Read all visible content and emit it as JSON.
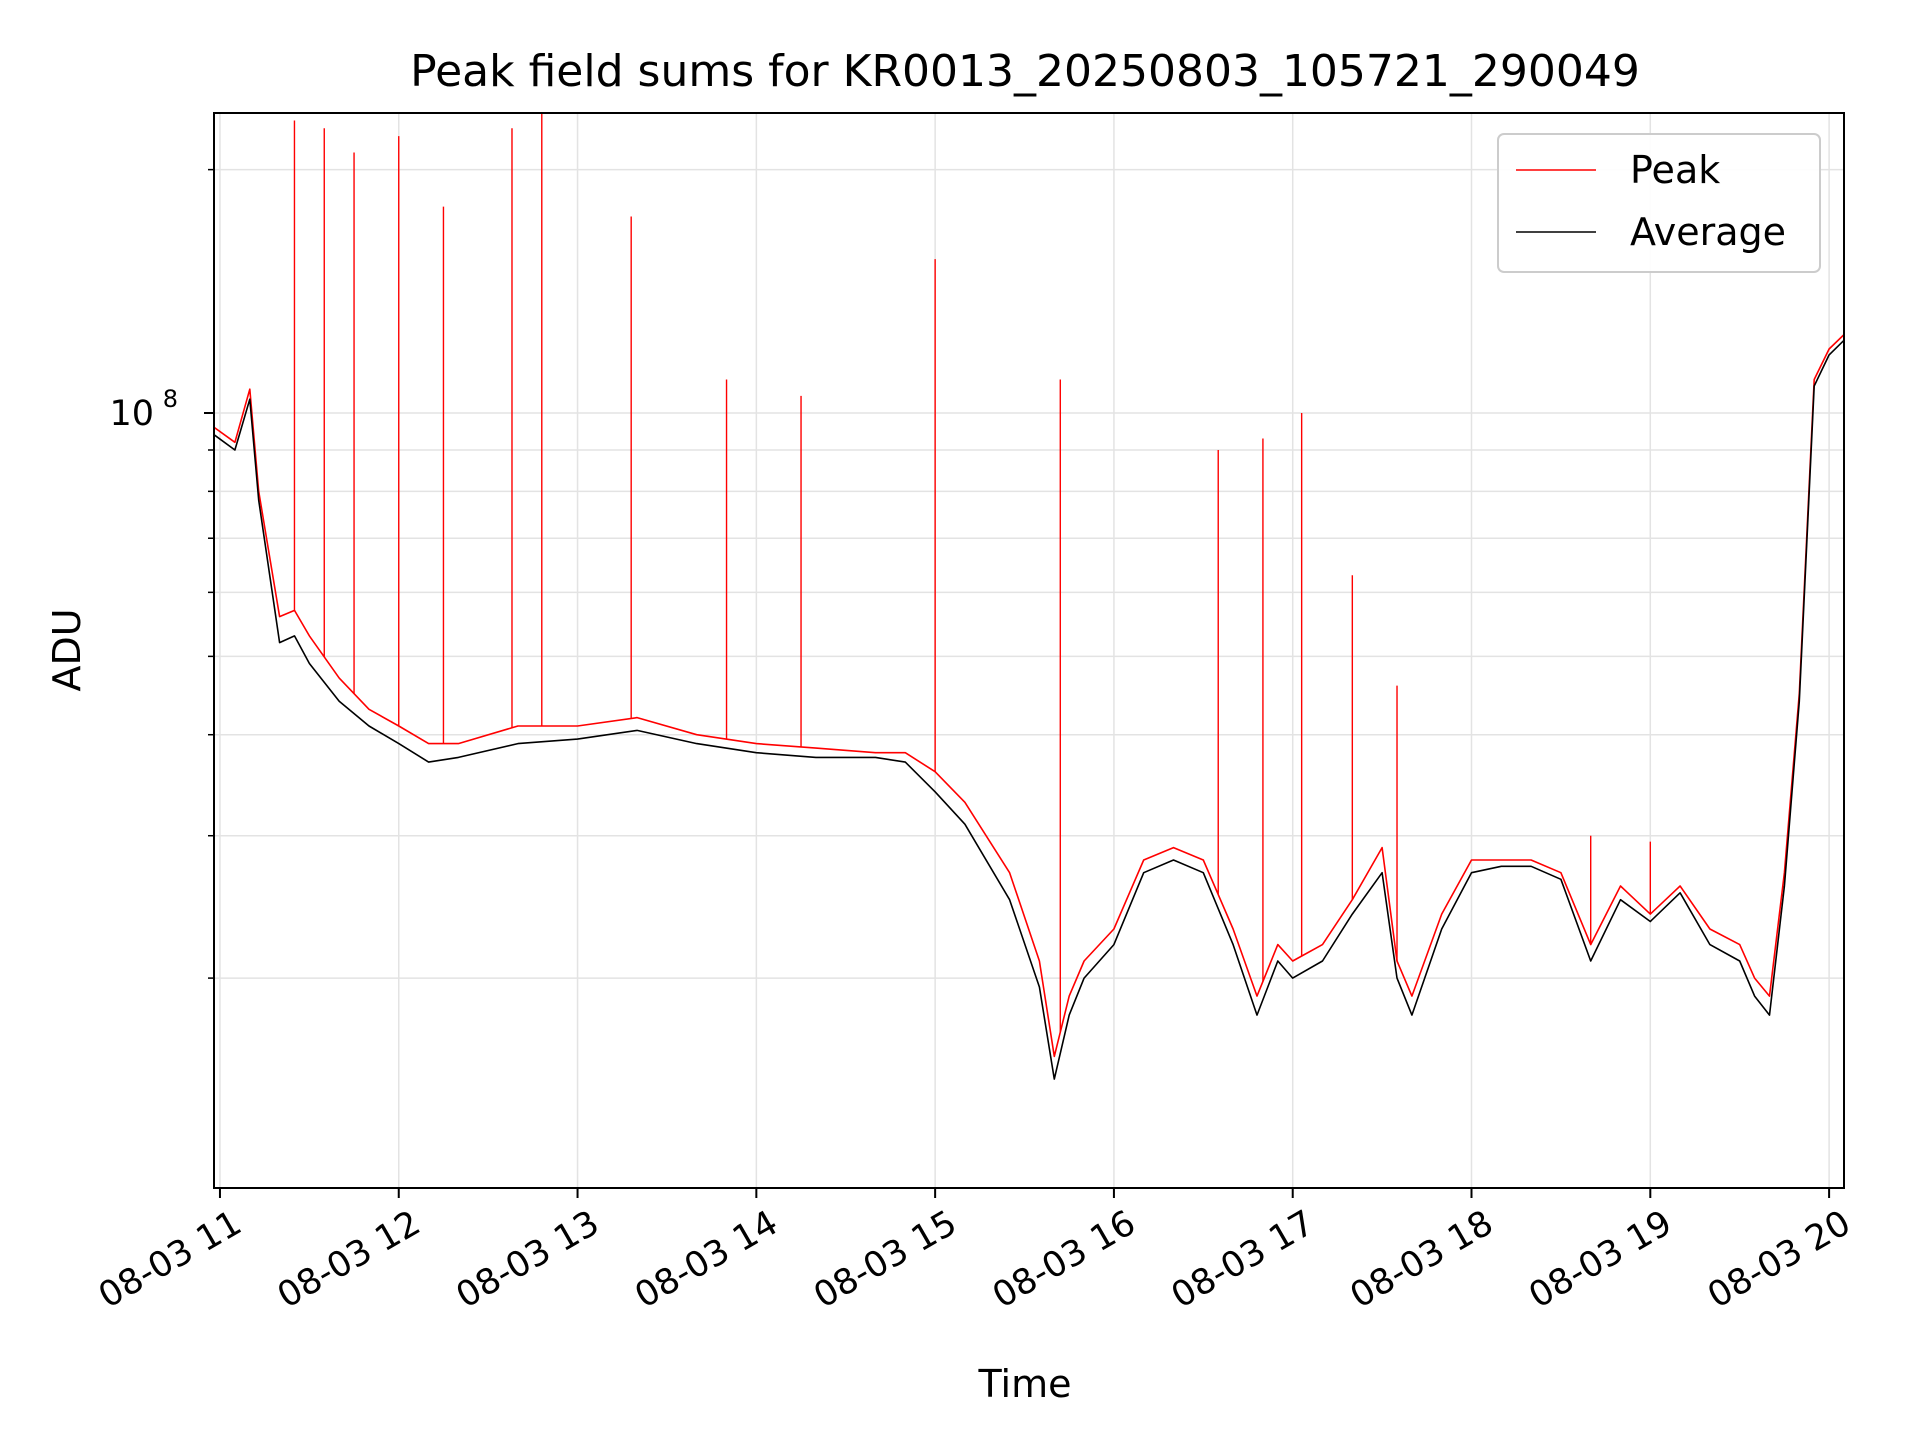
{
  "chart_data": {
    "type": "line",
    "title": "Peak field sums for KR0013_20250803_105721_290049",
    "xlabel": "Time",
    "ylabel": "ADU",
    "yscale": "log",
    "xlim": [
      "2025-08-03T10:58:00",
      "2025-08-03T20:05:00"
    ],
    "ylim": [
      11000000,
      235000000
    ],
    "grid": true,
    "legend_position": "top-right",
    "x_tick_labels": [
      "08-03 11",
      "08-03 12",
      "08-03 13",
      "08-03 14",
      "08-03 15",
      "08-03 16",
      "08-03 17",
      "08-03 18",
      "08-03 19",
      "08-03 20"
    ],
    "x_tick_values": [
      "2025-08-03T11:00:00",
      "2025-08-03T12:00:00",
      "2025-08-03T13:00:00",
      "2025-08-03T14:00:00",
      "2025-08-03T15:00:00",
      "2025-08-03T16:00:00",
      "2025-08-03T17:00:00",
      "2025-08-03T18:00:00",
      "2025-08-03T19:00:00",
      "2025-08-03T20:00:00"
    ],
    "y_major_tick_label": "10",
    "y_major_tick_exponent": "8",
    "y_major_tick_value": 100000000,
    "y_minor_tick_values": [
      20000000,
      30000000,
      40000000,
      50000000,
      60000000,
      70000000,
      80000000,
      90000000,
      200000000
    ],
    "series": [
      {
        "name": "Peak",
        "color": "#ff0000",
        "x": [
          "2025-08-03T10:58:00",
          "2025-08-03T11:05:00",
          "2025-08-03T11:10:00",
          "2025-08-03T11:13:00",
          "2025-08-03T11:20:00",
          "2025-08-03T11:25:00",
          "2025-08-03T11:30:00",
          "2025-08-03T11:40:00",
          "2025-08-03T11:50:00",
          "2025-08-03T12:00:00",
          "2025-08-03T12:10:00",
          "2025-08-03T12:20:00",
          "2025-08-03T12:40:00",
          "2025-08-03T13:00:00",
          "2025-08-03T13:20:00",
          "2025-08-03T13:40:00",
          "2025-08-03T14:00:00",
          "2025-08-03T14:20:00",
          "2025-08-03T14:40:00",
          "2025-08-03T14:50:00",
          "2025-08-03T15:00:00",
          "2025-08-03T15:10:00",
          "2025-08-03T15:25:00",
          "2025-08-03T15:35:00",
          "2025-08-03T15:40:00",
          "2025-08-03T15:45:00",
          "2025-08-03T15:50:00",
          "2025-08-03T16:00:00",
          "2025-08-03T16:10:00",
          "2025-08-03T16:20:00",
          "2025-08-03T16:30:00",
          "2025-08-03T16:40:00",
          "2025-08-03T16:48:00",
          "2025-08-03T16:55:00",
          "2025-08-03T17:00:00",
          "2025-08-03T17:10:00",
          "2025-08-03T17:20:00",
          "2025-08-03T17:30:00",
          "2025-08-03T17:35:00",
          "2025-08-03T17:40:00",
          "2025-08-03T17:50:00",
          "2025-08-03T18:00:00",
          "2025-08-03T18:10:00",
          "2025-08-03T18:20:00",
          "2025-08-03T18:30:00",
          "2025-08-03T18:40:00",
          "2025-08-03T18:50:00",
          "2025-08-03T19:00:00",
          "2025-08-03T19:10:00",
          "2025-08-03T19:20:00",
          "2025-08-03T19:30:00",
          "2025-08-03T19:35:00",
          "2025-08-03T19:40:00",
          "2025-08-03T19:45:00",
          "2025-08-03T19:50:00",
          "2025-08-03T19:55:00",
          "2025-08-03T20:00:00",
          "2025-08-03T20:05:00"
        ],
        "y": [
          96000000,
          92000000,
          107000000,
          80000000,
          56000000,
          57000000,
          53000000,
          47000000,
          43000000,
          41000000,
          39000000,
          39000000,
          41000000,
          41000000,
          42000000,
          40000000,
          39000000,
          38500000,
          38000000,
          38000000,
          36000000,
          33000000,
          27000000,
          21000000,
          16000000,
          19000000,
          21000000,
          23000000,
          28000000,
          29000000,
          28000000,
          23000000,
          19000000,
          22000000,
          21000000,
          22000000,
          25000000,
          29000000,
          21000000,
          19000000,
          24000000,
          28000000,
          28000000,
          28000000,
          27000000,
          22000000,
          26000000,
          24000000,
          26000000,
          23000000,
          22000000,
          20000000,
          19000000,
          27000000,
          45000000,
          110000000,
          120000000,
          125000000
        ],
        "spikes": [
          {
            "x": "2025-08-03T11:25:00",
            "y": 230000000
          },
          {
            "x": "2025-08-03T11:35:00",
            "y": 225000000
          },
          {
            "x": "2025-08-03T11:45:00",
            "y": 210000000
          },
          {
            "x": "2025-08-03T12:00:00",
            "y": 220000000
          },
          {
            "x": "2025-08-03T12:15:00",
            "y": 180000000
          },
          {
            "x": "2025-08-03T12:38:00",
            "y": 225000000
          },
          {
            "x": "2025-08-03T12:48:00",
            "y": 235000000
          },
          {
            "x": "2025-08-03T13:18:00",
            "y": 175000000
          },
          {
            "x": "2025-08-03T13:50:00",
            "y": 110000000
          },
          {
            "x": "2025-08-03T14:15:00",
            "y": 105000000
          },
          {
            "x": "2025-08-03T15:00:00",
            "y": 155000000
          },
          {
            "x": "2025-08-03T15:42:00",
            "y": 110000000
          },
          {
            "x": "2025-08-03T16:35:00",
            "y": 90000000
          },
          {
            "x": "2025-08-03T16:50:00",
            "y": 93000000
          },
          {
            "x": "2025-08-03T17:03:00",
            "y": 100000000
          },
          {
            "x": "2025-08-03T17:20:00",
            "y": 63000000
          },
          {
            "x": "2025-08-03T17:35:00",
            "y": 46000000
          },
          {
            "x": "2025-08-03T18:40:00",
            "y": 30000000
          },
          {
            "x": "2025-08-03T19:00:00",
            "y": 29500000
          }
        ]
      },
      {
        "name": "Average",
        "color": "#000000",
        "x": [
          "2025-08-03T10:58:00",
          "2025-08-03T11:05:00",
          "2025-08-03T11:10:00",
          "2025-08-03T11:13:00",
          "2025-08-03T11:20:00",
          "2025-08-03T11:25:00",
          "2025-08-03T11:30:00",
          "2025-08-03T11:40:00",
          "2025-08-03T11:50:00",
          "2025-08-03T12:00:00",
          "2025-08-03T12:10:00",
          "2025-08-03T12:20:00",
          "2025-08-03T12:40:00",
          "2025-08-03T13:00:00",
          "2025-08-03T13:20:00",
          "2025-08-03T13:40:00",
          "2025-08-03T14:00:00",
          "2025-08-03T14:20:00",
          "2025-08-03T14:40:00",
          "2025-08-03T14:50:00",
          "2025-08-03T15:00:00",
          "2025-08-03T15:10:00",
          "2025-08-03T15:25:00",
          "2025-08-03T15:35:00",
          "2025-08-03T15:40:00",
          "2025-08-03T15:45:00",
          "2025-08-03T15:50:00",
          "2025-08-03T16:00:00",
          "2025-08-03T16:10:00",
          "2025-08-03T16:20:00",
          "2025-08-03T16:30:00",
          "2025-08-03T16:40:00",
          "2025-08-03T16:48:00",
          "2025-08-03T16:55:00",
          "2025-08-03T17:00:00",
          "2025-08-03T17:10:00",
          "2025-08-03T17:20:00",
          "2025-08-03T17:30:00",
          "2025-08-03T17:35:00",
          "2025-08-03T17:40:00",
          "2025-08-03T17:50:00",
          "2025-08-03T18:00:00",
          "2025-08-03T18:10:00",
          "2025-08-03T18:20:00",
          "2025-08-03T18:30:00",
          "2025-08-03T18:40:00",
          "2025-08-03T18:50:00",
          "2025-08-03T19:00:00",
          "2025-08-03T19:10:00",
          "2025-08-03T19:20:00",
          "2025-08-03T19:30:00",
          "2025-08-03T19:35:00",
          "2025-08-03T19:40:00",
          "2025-08-03T19:45:00",
          "2025-08-03T19:50:00",
          "2025-08-03T19:55:00",
          "2025-08-03T20:00:00",
          "2025-08-03T20:05:00"
        ],
        "y": [
          94000000,
          90000000,
          104000000,
          78000000,
          52000000,
          53000000,
          49000000,
          44000000,
          41000000,
          39000000,
          37000000,
          37500000,
          39000000,
          39500000,
          40500000,
          39000000,
          38000000,
          37500000,
          37500000,
          37000000,
          34000000,
          31000000,
          25000000,
          19500000,
          15000000,
          18000000,
          20000000,
          22000000,
          27000000,
          28000000,
          27000000,
          22000000,
          18000000,
          21000000,
          20000000,
          21000000,
          24000000,
          27000000,
          20000000,
          18000000,
          23000000,
          27000000,
          27500000,
          27500000,
          26500000,
          21000000,
          25000000,
          23500000,
          25500000,
          22000000,
          21000000,
          19000000,
          18000000,
          26000000,
          44000000,
          108000000,
          118000000,
          123000000
        ]
      }
    ]
  }
}
